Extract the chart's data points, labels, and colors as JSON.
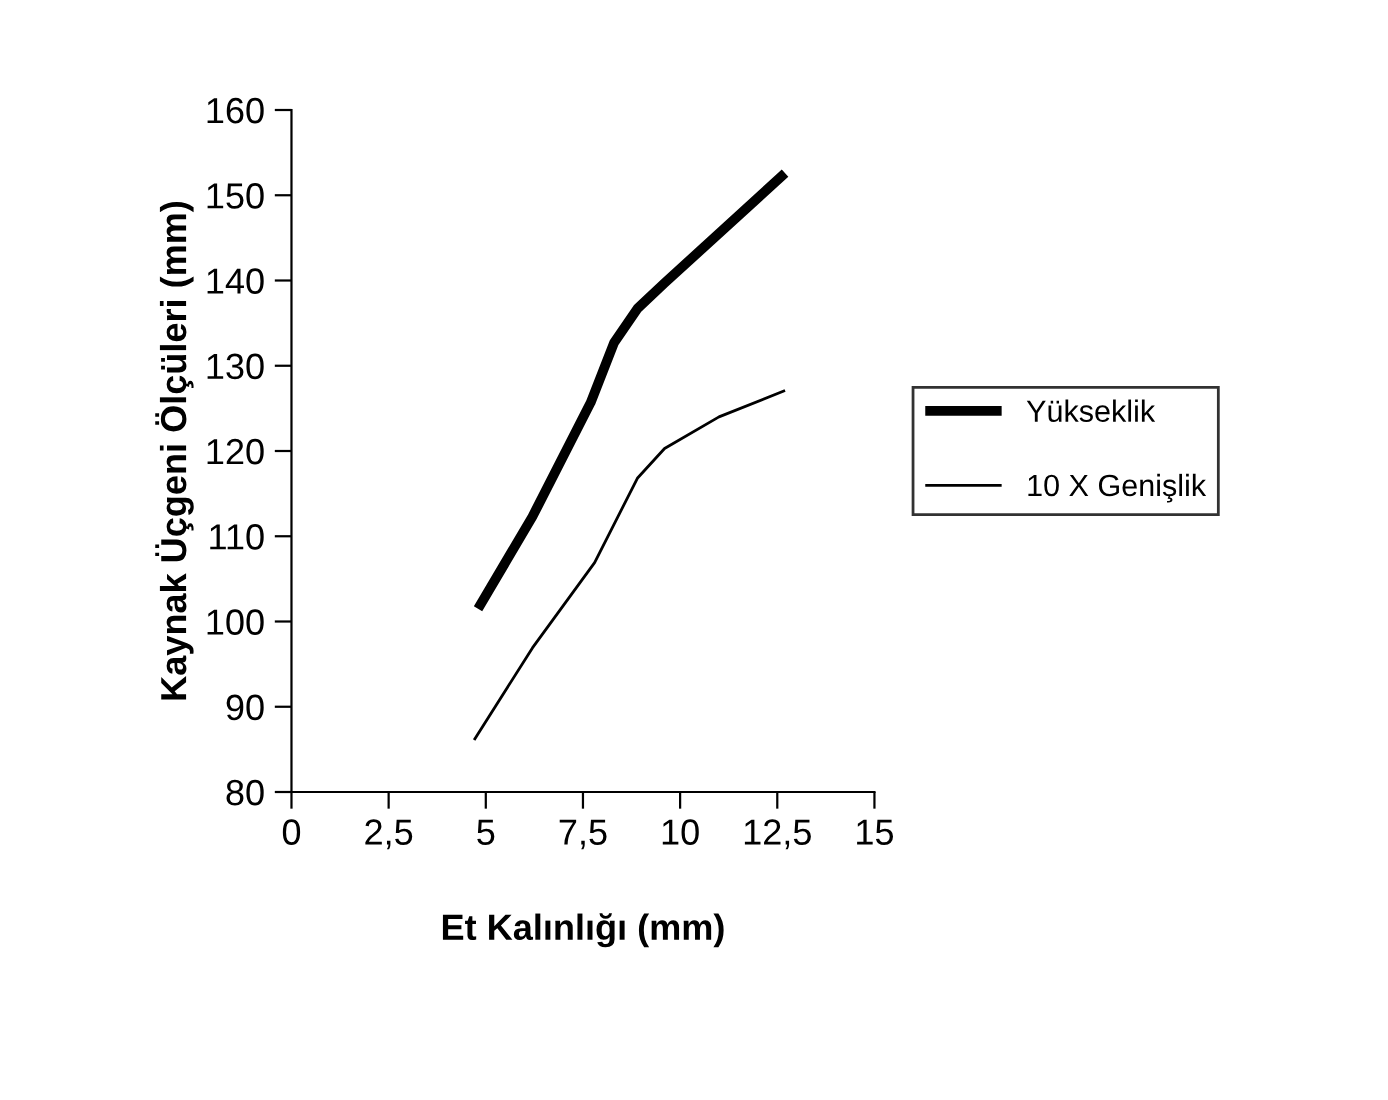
{
  "chart_data": {
    "type": "line",
    "xlabel": "Et Kalınlığı (mm)",
    "ylabel": "Kaynak Üçgeni Ölçüleri (mm)",
    "xlim": [
      0,
      15
    ],
    "xticks": [
      0,
      {
        "value": 2.5,
        "label": "2,5"
      },
      5,
      {
        "value": 7.5,
        "label": "7,5"
      },
      10,
      {
        "value": 12.5,
        "label": "12,5"
      },
      15
    ],
    "ylim": [
      80,
      160
    ],
    "yticks": [
      80,
      90,
      100,
      110,
      120,
      130,
      140,
      150,
      160
    ],
    "grid": false,
    "legend": "right",
    "marker": "none",
    "line_style": "solid",
    "series": [
      {
        "name": "Yükseklik",
        "color": "#000000",
        "x": [
          4.8,
          6.2,
          7.7,
          8.3,
          8.9,
          9.6,
          12.7
        ],
        "values": [
          101.5,
          112.3,
          125.7,
          132.7,
          136.7,
          139.7,
          152.6
        ]
      },
      {
        "name": "10 X Genişlik",
        "color": "#000000",
        "x": [
          4.7,
          6.2,
          7.8,
          8.9,
          9.6,
          11.0,
          12.7
        ],
        "values": [
          86.1,
          96.9,
          106.9,
          116.8,
          120.3,
          124.0,
          127.1
        ]
      }
    ]
  }
}
